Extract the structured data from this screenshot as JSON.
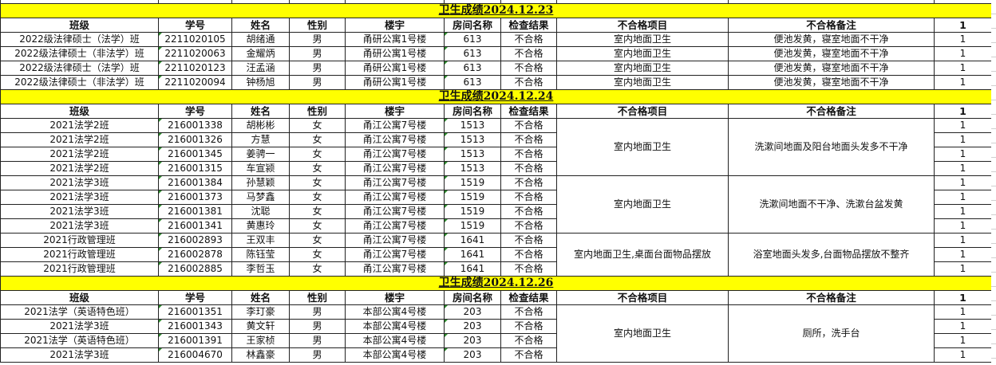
{
  "headers": [
    "班级",
    "学号",
    "姓名",
    "性别",
    "楼宇",
    "房间名称",
    "检查结果",
    "不合格项目",
    "不合格备注",
    "1"
  ],
  "sections": [
    {
      "title": "卫生成绩2024.12.23",
      "groups": [
        {
          "rows": [
            {
              "class": "2022级法律硕士（法学）班",
              "id": "2211020105",
              "name": "胡绪通",
              "gender": "男",
              "building": "甬研公寓1号楼",
              "room": "613",
              "result": "不合格",
              "item": "室内地面卫生",
              "remark": "便池发黄，寝室地面不干净",
              "count": "1"
            }
          ]
        },
        {
          "rows": [
            {
              "class": "2022级法律硕士（非法学）班",
              "id": "2211020063",
              "name": "金耀炳",
              "gender": "男",
              "building": "甬研公寓1号楼",
              "room": "613",
              "result": "不合格",
              "item": "室内地面卫生",
              "remark": "便池发黄，寝室地面不干净",
              "count": "1"
            }
          ]
        },
        {
          "rows": [
            {
              "class": "2022级法律硕士（法学）班",
              "id": "2211020123",
              "name": "汪孟涵",
              "gender": "男",
              "building": "甬研公寓1号楼",
              "room": "613",
              "result": "不合格",
              "item": "室内地面卫生",
              "remark": "便池发黄，寝室地面不干净",
              "count": "1"
            }
          ]
        },
        {
          "rows": [
            {
              "class": "2022级法律硕士（非法学）班",
              "id": "2211020094",
              "name": "钟杨旭",
              "gender": "男",
              "building": "甬研公寓1号楼",
              "room": "613",
              "result": "不合格",
              "item": "室内地面卫生",
              "remark": "便池发黄，寝室地面不干净",
              "count": "1"
            }
          ]
        }
      ]
    },
    {
      "title": "卫生成绩2024.12.24",
      "groups": [
        {
          "item": "室内地面卫生",
          "remark": "洗漱间地面及阳台地面头发多不干净",
          "rows": [
            {
              "class": "2021法学2班",
              "id": "216001338",
              "name": "胡彬彬",
              "gender": "女",
              "building": "甬江公寓7号楼",
              "room": "1513",
              "result": "不合格",
              "count": "1"
            },
            {
              "class": "2021法学2班",
              "id": "216001326",
              "name": "方慧",
              "gender": "女",
              "building": "甬江公寓7号楼",
              "room": "1513",
              "result": "不合格",
              "count": "1"
            },
            {
              "class": "2021法学2班",
              "id": "216001345",
              "name": "姜骋一",
              "gender": "女",
              "building": "甬江公寓7号楼",
              "room": "1513",
              "result": "不合格",
              "count": "1"
            },
            {
              "class": "2021法学2班",
              "id": "216001315",
              "name": "车宣颍",
              "gender": "女",
              "building": "甬江公寓7号楼",
              "room": "1513",
              "result": "不合格",
              "count": "1"
            }
          ]
        },
        {
          "item": "室内地面卫生",
          "remark": "洗漱间地面不干净、洗漱台盆发黄",
          "rows": [
            {
              "class": "2021法学3班",
              "id": "216001384",
              "name": "孙慧颖",
              "gender": "女",
              "building": "甬江公寓7号楼",
              "room": "1519",
              "result": "不合格",
              "count": "1"
            },
            {
              "class": "2021法学3班",
              "id": "216001373",
              "name": "马梦鑫",
              "gender": "女",
              "building": "甬江公寓7号楼",
              "room": "1519",
              "result": "不合格",
              "count": "1"
            },
            {
              "class": "2021法学3班",
              "id": "216001381",
              "name": "沈聪",
              "gender": "女",
              "building": "甬江公寓7号楼",
              "room": "1519",
              "result": "不合格",
              "count": "1"
            },
            {
              "class": "2021法学3班",
              "id": "216001341",
              "name": "黄惠玲",
              "gender": "女",
              "building": "甬江公寓7号楼",
              "room": "1519",
              "result": "不合格",
              "count": "1"
            }
          ]
        },
        {
          "item": "室内地面卫生,桌面台面物品摆放",
          "remark": "浴室地面头发多,台面物品摆放不整齐",
          "rows": [
            {
              "class": "2021行政管理班",
              "id": "216002893",
              "name": "王双丰",
              "gender": "女",
              "building": "甬江公寓7号楼",
              "room": "1641",
              "result": "不合格",
              "count": "1"
            },
            {
              "class": "2021行政管理班",
              "id": "216002878",
              "name": "陈钰莹",
              "gender": "女",
              "building": "甬江公寓7号楼",
              "room": "1641",
              "result": "不合格",
              "count": "1"
            },
            {
              "class": "2021行政管理班",
              "id": "216002885",
              "name": "李哲玉",
              "gender": "女",
              "building": "甬江公寓7号楼",
              "room": "1641",
              "result": "不合格",
              "count": "1"
            }
          ]
        }
      ]
    },
    {
      "title": "卫生成绩2024.12.26",
      "groups": [
        {
          "item": "室内地面卫生",
          "remark": "厕所，洗手台",
          "rows": [
            {
              "class": "2021法学（英语特色班）",
              "id": "216001351",
              "name": "李玎豪",
              "gender": "男",
              "building": "本部公寓4号楼",
              "room": "203",
              "result": "不合格",
              "count": "1"
            },
            {
              "class": "2021法学3班",
              "id": "216001343",
              "name": "黄文轩",
              "gender": "男",
              "building": "本部公寓4号楼",
              "room": "203",
              "result": "不合格",
              "count": "1"
            },
            {
              "class": "2021法学（英语特色班）",
              "id": "216001391",
              "name": "王家桢",
              "gender": "男",
              "building": "本部公寓4号楼",
              "room": "203",
              "result": "不合格",
              "count": "1"
            },
            {
              "class": "2021法学3班",
              "id": "216004670",
              "name": "林鑫豪",
              "gender": "男",
              "building": "本部公寓4号楼",
              "room": "203",
              "result": "不合格",
              "count": "1"
            }
          ]
        }
      ]
    }
  ],
  "colors": {
    "title_bg": "#ffff00",
    "grid": "#222222",
    "number_marker": "#2a8a2a"
  }
}
